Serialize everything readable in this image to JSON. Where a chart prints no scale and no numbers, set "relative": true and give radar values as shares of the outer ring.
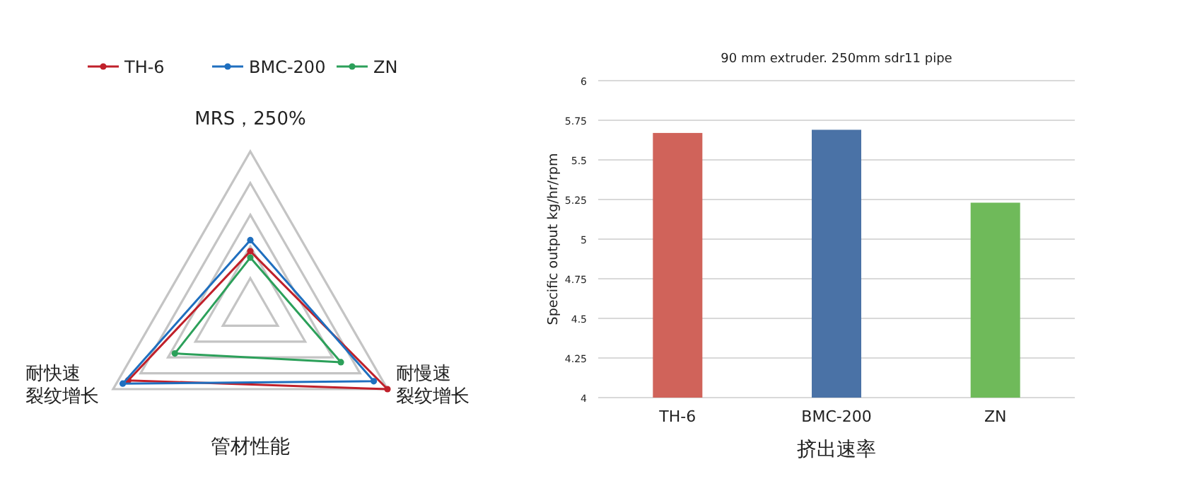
{
  "chart_data": [
    {
      "type": "radar",
      "relative": true,
      "xlabel": "管材性能",
      "categories": [
        "MRS，250%",
        "耐慢速裂纹增长",
        "耐快速裂纹增长"
      ],
      "legend": "top",
      "marker": "circle",
      "grid": true,
      "series": [
        {
          "name": "TH-6",
          "color": "#c0202a",
          "values": [
            0.37,
            1.0,
            0.89
          ]
        },
        {
          "name": "BMC-200",
          "color": "#1f6fbf",
          "values": [
            0.44,
            0.9,
            0.93
          ]
        },
        {
          "name": "ZN",
          "color": "#2ca05a",
          "values": [
            0.33,
            0.66,
            0.55
          ]
        }
      ]
    },
    {
      "type": "bar",
      "title": "90 mm extruder. 250mm sdr11 pipe",
      "ylabel": "Specific output kg/hr/rpm",
      "xlabel": "挤出速率",
      "categories": [
        "TH-6",
        "BMC-200",
        "ZN"
      ],
      "values": [
        5.67,
        5.69,
        5.23
      ],
      "colors": [
        "#d0635a",
        "#4a72a6",
        "#6fba5a"
      ],
      "ylim": [
        4,
        6
      ],
      "yticks": [
        4,
        4.25,
        4.5,
        4.75,
        5,
        5.25,
        5.5,
        5.75,
        6
      ],
      "grid": "y"
    }
  ]
}
